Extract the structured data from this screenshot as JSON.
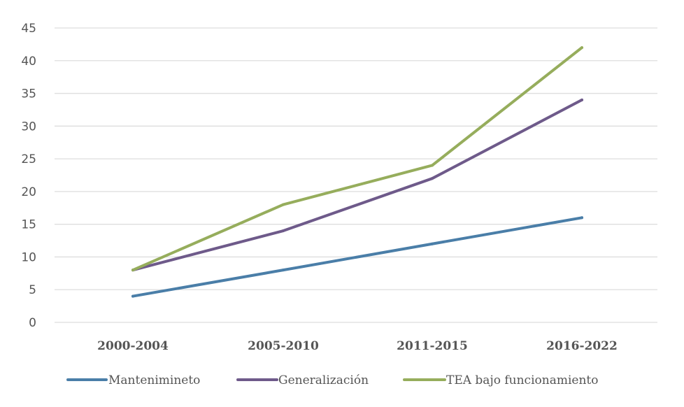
{
  "chart_data": {
    "type": "line",
    "categories": [
      "2000-2004",
      "2005-2010",
      "2011-2015",
      "2016-2022"
    ],
    "series": [
      {
        "name": "Manteniminetο",
        "values": [
          4,
          8,
          12,
          16
        ],
        "color": "#4a7ea8"
      },
      {
        "name": "Generalización",
        "values": [
          8,
          14,
          22,
          34
        ],
        "color": "#6e5a8a"
      },
      {
        "name": "TEA bajo funcionamiento",
        "values": [
          8,
          18,
          24,
          42
        ],
        "color": "#96ad5c"
      }
    ],
    "y_ticks": [
      "0",
      "5",
      "10",
      "15",
      "20",
      "25",
      "30",
      "35",
      "40",
      "45"
    ],
    "ylim": [
      0,
      45
    ],
    "grid": true,
    "legend_position": "bottom"
  }
}
